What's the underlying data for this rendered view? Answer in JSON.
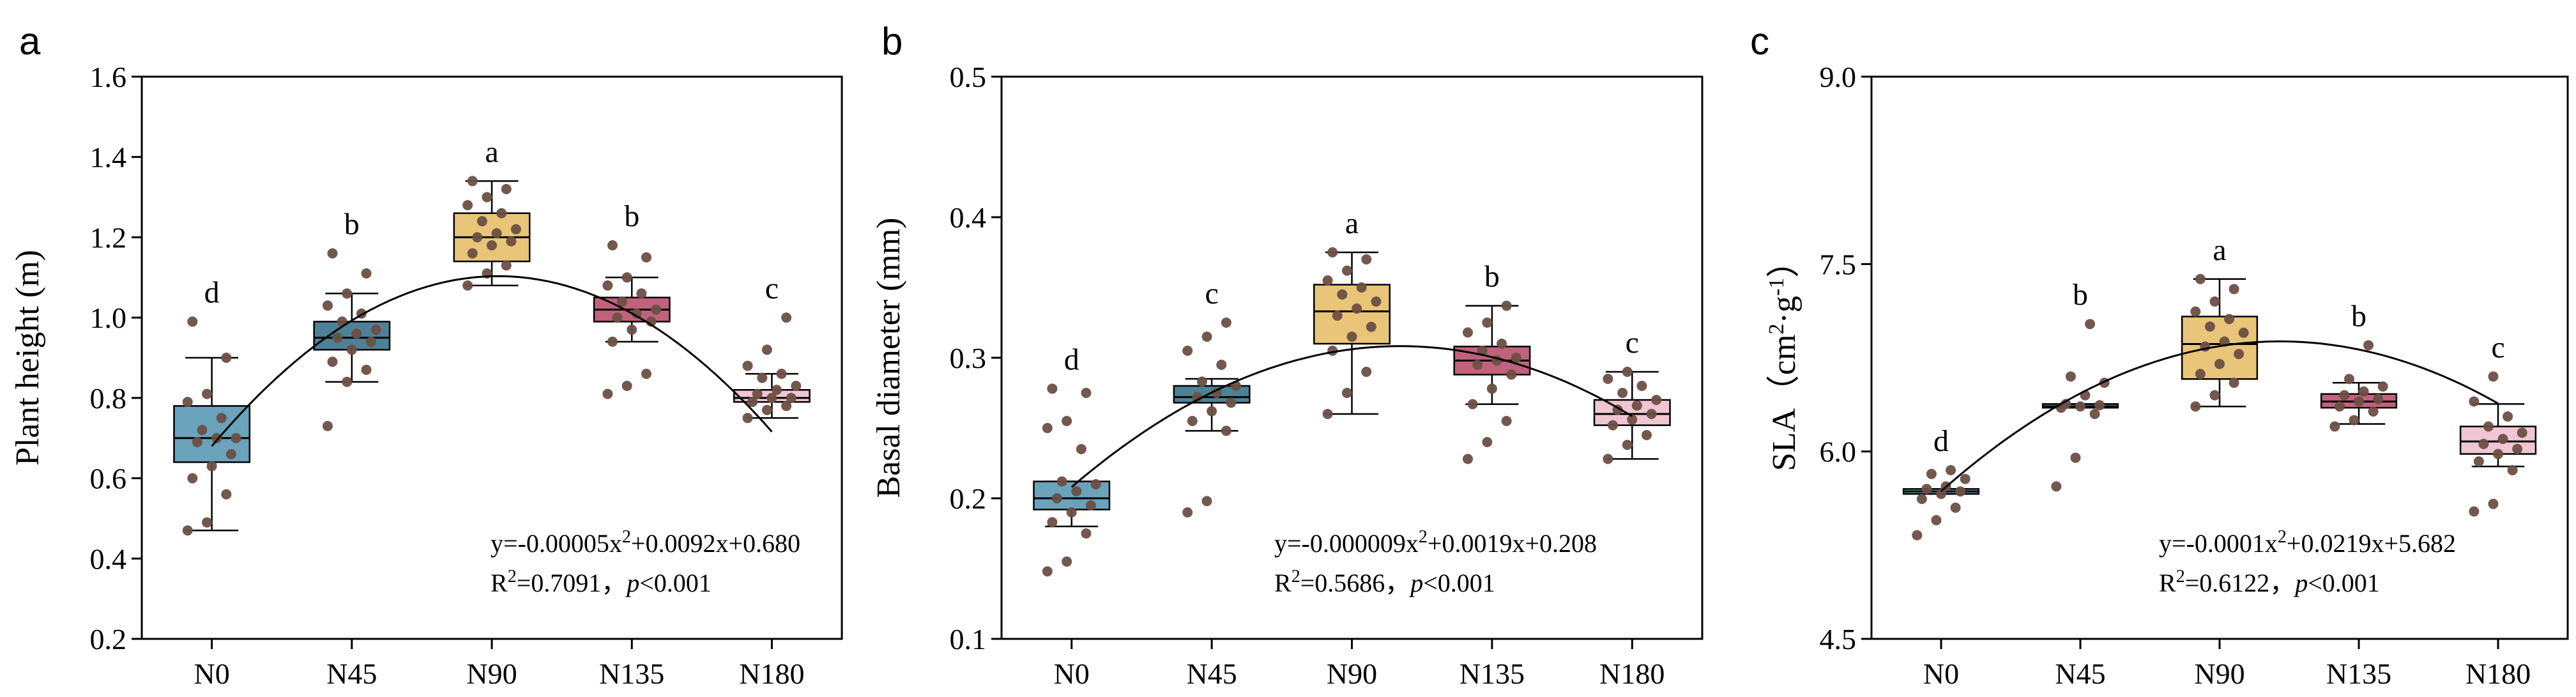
{
  "chart_data": [
    {
      "type": "box",
      "panel": "a",
      "ylabel": "Plant height (m)",
      "ylim": [
        0.2,
        1.6
      ],
      "yticks": [
        "0.2",
        "0.4",
        "0.6",
        "0.8",
        "1.0",
        "1.2",
        "1.4",
        "1.6"
      ],
      "categories": [
        "N0",
        "N45",
        "N90",
        "N135",
        "N180"
      ],
      "boxes": [
        {
          "q1": 0.64,
          "median": 0.7,
          "q3": 0.78,
          "lo": 0.47,
          "hi": 0.9,
          "sig": "d",
          "color": "#6aa3bb",
          "points": [
            0.47,
            0.49,
            0.56,
            0.6,
            0.63,
            0.66,
            0.69,
            0.7,
            0.7,
            0.72,
            0.75,
            0.79,
            0.81,
            0.9,
            0.99
          ]
        },
        {
          "q1": 0.92,
          "median": 0.95,
          "q3": 0.99,
          "lo": 0.84,
          "hi": 1.06,
          "sig": "b",
          "color": "#4d8197",
          "points": [
            0.73,
            0.84,
            0.87,
            0.89,
            0.92,
            0.94,
            0.95,
            0.96,
            0.97,
            0.99,
            1.01,
            1.03,
            1.06,
            1.11,
            1.16
          ]
        },
        {
          "q1": 1.14,
          "median": 1.2,
          "q3": 1.26,
          "lo": 1.08,
          "hi": 1.34,
          "sig": "a",
          "color": "#e8c579",
          "points": [
            1.08,
            1.11,
            1.13,
            1.16,
            1.18,
            1.19,
            1.2,
            1.21,
            1.22,
            1.24,
            1.26,
            1.28,
            1.3,
            1.32,
            1.34
          ]
        },
        {
          "q1": 0.99,
          "median": 1.02,
          "q3": 1.05,
          "lo": 0.94,
          "hi": 1.1,
          "sig": "b",
          "color": "#c0627c",
          "points": [
            0.81,
            0.83,
            0.86,
            0.94,
            0.97,
            0.99,
            1.0,
            1.01,
            1.02,
            1.04,
            1.06,
            1.08,
            1.1,
            1.15,
            1.18
          ]
        },
        {
          "q1": 0.79,
          "median": 0.8,
          "q3": 0.82,
          "lo": 0.75,
          "hi": 0.86,
          "sig": "c",
          "color": "#f0c6d3",
          "points": [
            0.75,
            0.77,
            0.78,
            0.79,
            0.8,
            0.8,
            0.81,
            0.82,
            0.83,
            0.85,
            0.86,
            0.88,
            0.92,
            1.0
          ]
        }
      ],
      "fit": {
        "a": -5e-05,
        "b": 0.0092,
        "c": 0.68
      },
      "equation_prefix": "y=-0.00005x",
      "equation_suffix": "+0.0092x+0.680",
      "r2_value": "=0.7091，",
      "p_text": "<0.001"
    },
    {
      "type": "box",
      "panel": "b",
      "ylabel": "Basal diameter (mm)",
      "ylim": [
        0.1,
        0.5
      ],
      "yticks": [
        "0.1",
        "0.2",
        "0.3",
        "0.4",
        "0.5"
      ],
      "categories": [
        "N0",
        "N45",
        "N90",
        "N135",
        "N180"
      ],
      "boxes": [
        {
          "q1": 0.192,
          "median": 0.2,
          "q3": 0.212,
          "lo": 0.18,
          "hi": 0.212,
          "sig": "d",
          "color": "#6aa3bb",
          "points": [
            0.148,
            0.155,
            0.175,
            0.183,
            0.19,
            0.195,
            0.2,
            0.205,
            0.21,
            0.212,
            0.235,
            0.25,
            0.255,
            0.275,
            0.278
          ]
        },
        {
          "q1": 0.268,
          "median": 0.272,
          "q3": 0.28,
          "lo": 0.248,
          "hi": 0.285,
          "sig": "c",
          "color": "#4d8197",
          "points": [
            0.19,
            0.198,
            0.248,
            0.255,
            0.262,
            0.268,
            0.272,
            0.275,
            0.28,
            0.283,
            0.295,
            0.305,
            0.315,
            0.325
          ]
        },
        {
          "q1": 0.31,
          "median": 0.333,
          "q3": 0.352,
          "lo": 0.26,
          "hi": 0.375,
          "sig": "a",
          "color": "#e8c579",
          "points": [
            0.26,
            0.275,
            0.29,
            0.305,
            0.315,
            0.322,
            0.33,
            0.335,
            0.34,
            0.345,
            0.35,
            0.355,
            0.362,
            0.37,
            0.375
          ]
        },
        {
          "q1": 0.288,
          "median": 0.298,
          "q3": 0.308,
          "lo": 0.267,
          "hi": 0.337,
          "sig": "b",
          "color": "#c0627c",
          "points": [
            0.228,
            0.24,
            0.255,
            0.267,
            0.278,
            0.288,
            0.295,
            0.298,
            0.3,
            0.305,
            0.31,
            0.318,
            0.325,
            0.337
          ]
        },
        {
          "q1": 0.252,
          "median": 0.26,
          "q3": 0.27,
          "lo": 0.228,
          "hi": 0.29,
          "sig": "c",
          "color": "#f0c6d3",
          "points": [
            0.228,
            0.238,
            0.245,
            0.252,
            0.256,
            0.26,
            0.263,
            0.266,
            0.27,
            0.275,
            0.28,
            0.285,
            0.29
          ]
        }
      ],
      "fit": {
        "a": -9e-06,
        "b": 0.0019,
        "c": 0.208
      },
      "equation_prefix": "y=-0.000009x",
      "equation_suffix": "+0.0019x+0.208",
      "r2_value": "=0.5686，",
      "p_text": "<0.001"
    },
    {
      "type": "box",
      "panel": "c",
      "ylabel_main": "SLA（cm",
      "ylabel_mid": "·g",
      "ylabel_end": "）",
      "ylim": [
        4.5,
        9.0
      ],
      "yticks": [
        "4.5",
        "6.0",
        "7.5",
        "9.0"
      ],
      "categories": [
        "N0",
        "N45",
        "N90",
        "N135",
        "N180"
      ],
      "boxes": [
        {
          "q1": 5.66,
          "median": 5.68,
          "q3": 5.7,
          "lo": 5.66,
          "hi": 5.7,
          "sig": "d",
          "color": "#6aa3bb",
          "points": [
            5.33,
            5.45,
            5.55,
            5.62,
            5.66,
            5.68,
            5.7,
            5.72,
            5.78,
            5.82,
            5.85
          ]
        },
        {
          "q1": 6.35,
          "median": 6.36,
          "q3": 6.38,
          "lo": 6.35,
          "hi": 6.38,
          "sig": "b",
          "color": "#4d8197",
          "points": [
            5.72,
            5.95,
            6.3,
            6.35,
            6.36,
            6.37,
            6.38,
            6.45,
            6.55,
            6.6,
            7.02
          ]
        },
        {
          "q1": 6.58,
          "median": 6.86,
          "q3": 7.08,
          "lo": 6.36,
          "hi": 7.38,
          "sig": "a",
          "color": "#e8c579",
          "points": [
            6.36,
            6.45,
            6.55,
            6.62,
            6.7,
            6.78,
            6.84,
            6.88,
            6.95,
            7.0,
            7.06,
            7.12,
            7.2,
            7.3,
            7.38
          ]
        },
        {
          "q1": 6.35,
          "median": 6.4,
          "q3": 6.46,
          "lo": 6.22,
          "hi": 6.55,
          "sig": "b",
          "color": "#c0627c",
          "points": [
            6.2,
            6.25,
            6.32,
            6.36,
            6.4,
            6.42,
            6.45,
            6.48,
            6.52,
            6.58,
            6.85
          ]
        },
        {
          "q1": 5.98,
          "median": 6.08,
          "q3": 6.2,
          "lo": 5.88,
          "hi": 6.38,
          "sig": "c",
          "color": "#f0c6d3",
          "points": [
            5.52,
            5.58,
            5.85,
            5.92,
            5.98,
            6.02,
            6.06,
            6.1,
            6.15,
            6.2,
            6.28,
            6.4,
            6.6
          ]
        }
      ],
      "fit": {
        "a": -0.0001,
        "b": 0.0219,
        "c": 5.682
      },
      "equation_prefix": "y=-0.0001x",
      "equation_suffix": "+0.0219x+5.682",
      "r2_value": "=0.6122，",
      "p_text": "<0.001"
    }
  ],
  "labels": {
    "sup_two": "2",
    "sup_minus_one": "-1",
    "r_letter": "R",
    "p_letter": "p"
  },
  "n_levels": [
    0,
    45,
    90,
    135,
    180
  ]
}
